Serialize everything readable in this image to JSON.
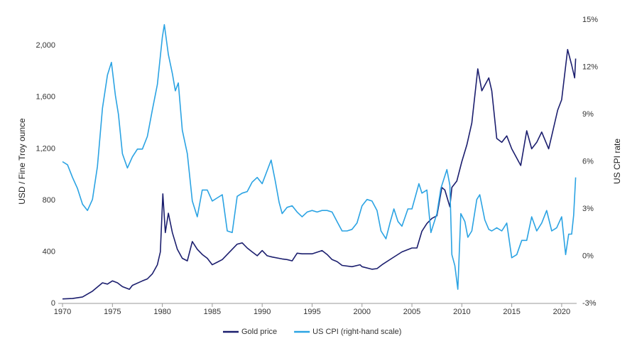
{
  "chart_data": {
    "type": "line",
    "y_label": "USD / Fine Troy ounce",
    "y2_label": "US CPI rate",
    "xlim": [
      1969.57,
      2021.5
    ],
    "xticks": [
      1970,
      1975,
      1980,
      1985,
      1990,
      1995,
      2000,
      2005,
      2010,
      2015,
      2020
    ],
    "ylim": [
      0,
      2200
    ],
    "yticks": [
      0,
      400,
      800,
      {
        "value": 1200,
        "label": "1,200"
      },
      {
        "value": 1600,
        "label": "1,600"
      },
      {
        "value": 2000,
        "label": "2,000"
      }
    ],
    "y2lim": [
      -3,
      15
    ],
    "y2ticks": [
      {
        "value": -3,
        "label": "-3%"
      },
      {
        "value": 0,
        "label": "0%"
      },
      {
        "value": 3,
        "label": "3%"
      },
      {
        "value": 6,
        "label": "6%"
      },
      {
        "value": 9,
        "label": "9%"
      },
      {
        "value": 12,
        "label": "12%"
      },
      {
        "value": 15,
        "label": "15%"
      }
    ],
    "grid": false,
    "legend": "bottom",
    "series": [
      {
        "name": "Gold price",
        "color": "#1b1e6e",
        "x": [
          1970,
          1971,
          1972,
          1973,
          1974,
          1974.5,
          1975,
          1975.5,
          1976,
          1976.7,
          1977,
          1978,
          1978.5,
          1979,
          1979.5,
          1979.8,
          1980.05,
          1980.3,
          1980.6,
          1981,
          1981.5,
          1982,
          1982.5,
          1983,
          1983.5,
          1984,
          1984.5,
          1985,
          1985.5,
          1986,
          1986.5,
          1987,
          1987.5,
          1988,
          1988.5,
          1989,
          1989.5,
          1990,
          1990.5,
          1991,
          1992,
          1992.5,
          1993,
          1993.5,
          1994,
          1995,
          1996,
          1996.5,
          1997,
          1997.5,
          1998,
          1999,
          1999.8,
          2000,
          2001,
          2001.5,
          2002,
          2003,
          2004,
          2005,
          2005.5,
          2006,
          2006.5,
          2007,
          2007.5,
          2008,
          2008.3,
          2008.8,
          2009,
          2009.5,
          2010,
          2010.5,
          2011,
          2011.6,
          2012,
          2012.7,
          2013,
          2013.5,
          2014,
          2014.5,
          2015,
          2015.9,
          2016.5,
          2017,
          2017.5,
          2018,
          2018.7,
          2019,
          2019.6,
          2020,
          2020.6,
          2021,
          2021.3,
          2021.4
        ],
        "values": [
          35,
          38,
          50,
          95,
          160,
          150,
          175,
          160,
          130,
          110,
          140,
          175,
          190,
          230,
          300,
          400,
          850,
          550,
          700,
          550,
          420,
          350,
          330,
          480,
          420,
          380,
          350,
          300,
          320,
          340,
          380,
          420,
          460,
          470,
          430,
          400,
          370,
          410,
          370,
          360,
          345,
          340,
          330,
          390,
          385,
          385,
          410,
          380,
          340,
          325,
          295,
          285,
          300,
          285,
          265,
          270,
          300,
          350,
          400,
          430,
          430,
          560,
          620,
          660,
          680,
          900,
          880,
          750,
          900,
          950,
          1100,
          1230,
          1400,
          1820,
          1650,
          1750,
          1650,
          1280,
          1250,
          1300,
          1200,
          1070,
          1340,
          1200,
          1250,
          1330,
          1200,
          1300,
          1500,
          1580,
          1970,
          1850,
          1750,
          1900
        ]
      },
      {
        "name": "US CPI (right-hand scale)",
        "color": "#2ba3e3",
        "axis": "y2",
        "x": [
          1970,
          1970.5,
          1971,
          1971.5,
          1972,
          1972.5,
          1973,
          1973.5,
          1974,
          1974.5,
          1974.9,
          1975.3,
          1975.6,
          1976,
          1976.5,
          1977,
          1977.5,
          1978,
          1978.5,
          1979,
          1979.5,
          1980,
          1980.2,
          1980.6,
          1981,
          1981.3,
          1981.6,
          1982,
          1982.5,
          1983,
          1983.5,
          1984,
          1984.5,
          1985,
          1985.5,
          1986,
          1986.5,
          1987,
          1987.5,
          1988,
          1988.5,
          1989,
          1989.5,
          1990,
          1990.6,
          1990.9,
          1991.3,
          1991.7,
          1992,
          1992.5,
          1993,
          1993.5,
          1994,
          1994.5,
          1995,
          1995.5,
          1996,
          1996.5,
          1997,
          1997.5,
          1998,
          1998.5,
          1999,
          1999.5,
          2000,
          2000.5,
          2001,
          2001.5,
          2001.9,
          2002.4,
          2002.8,
          2003.2,
          2003.6,
          2004,
          2004.6,
          2005,
          2005.7,
          2006,
          2006.5,
          2006.9,
          2007.5,
          2007.9,
          2008.5,
          2008.8,
          2009,
          2009.3,
          2009.6,
          2009.9,
          2010.3,
          2010.6,
          2011,
          2011.5,
          2011.8,
          2012.3,
          2012.7,
          2013,
          2013.5,
          2014,
          2014.5,
          2015,
          2015.5,
          2016,
          2016.5,
          2017,
          2017.5,
          2018,
          2018.5,
          2019,
          2019.5,
          2020,
          2020.4,
          2020.7,
          2021,
          2021.2,
          2021.4
        ],
        "values": [
          6.0,
          5.8,
          5.0,
          4.3,
          3.3,
          2.9,
          3.6,
          5.7,
          9.4,
          11.5,
          12.3,
          10.2,
          9.0,
          6.5,
          5.6,
          6.3,
          6.8,
          6.8,
          7.6,
          9.3,
          10.9,
          13.9,
          14.7,
          12.8,
          11.6,
          10.5,
          11.0,
          8.0,
          6.5,
          3.5,
          2.5,
          4.2,
          4.2,
          3.5,
          3.7,
          3.9,
          1.6,
          1.5,
          3.8,
          4.0,
          4.1,
          4.7,
          5.0,
          4.6,
          5.6,
          6.1,
          4.8,
          3.4,
          2.7,
          3.1,
          3.2,
          2.8,
          2.5,
          2.8,
          2.9,
          2.8,
          2.9,
          2.9,
          2.8,
          2.2,
          1.6,
          1.6,
          1.7,
          2.1,
          3.2,
          3.6,
          3.5,
          2.9,
          1.6,
          1.1,
          2.1,
          3.0,
          2.2,
          1.9,
          3.0,
          3.0,
          4.6,
          4.0,
          4.2,
          1.5,
          2.7,
          4.3,
          5.5,
          4.5,
          0.1,
          -0.6,
          -2.1,
          2.7,
          2.2,
          1.2,
          1.6,
          3.6,
          3.9,
          2.3,
          1.7,
          1.6,
          1.8,
          1.6,
          2.1,
          -0.1,
          0.1,
          1.0,
          1.0,
          2.5,
          1.6,
          2.1,
          2.9,
          1.6,
          1.8,
          2.5,
          0.1,
          1.4,
          1.4,
          2.6,
          5.0
        ]
      }
    ]
  }
}
